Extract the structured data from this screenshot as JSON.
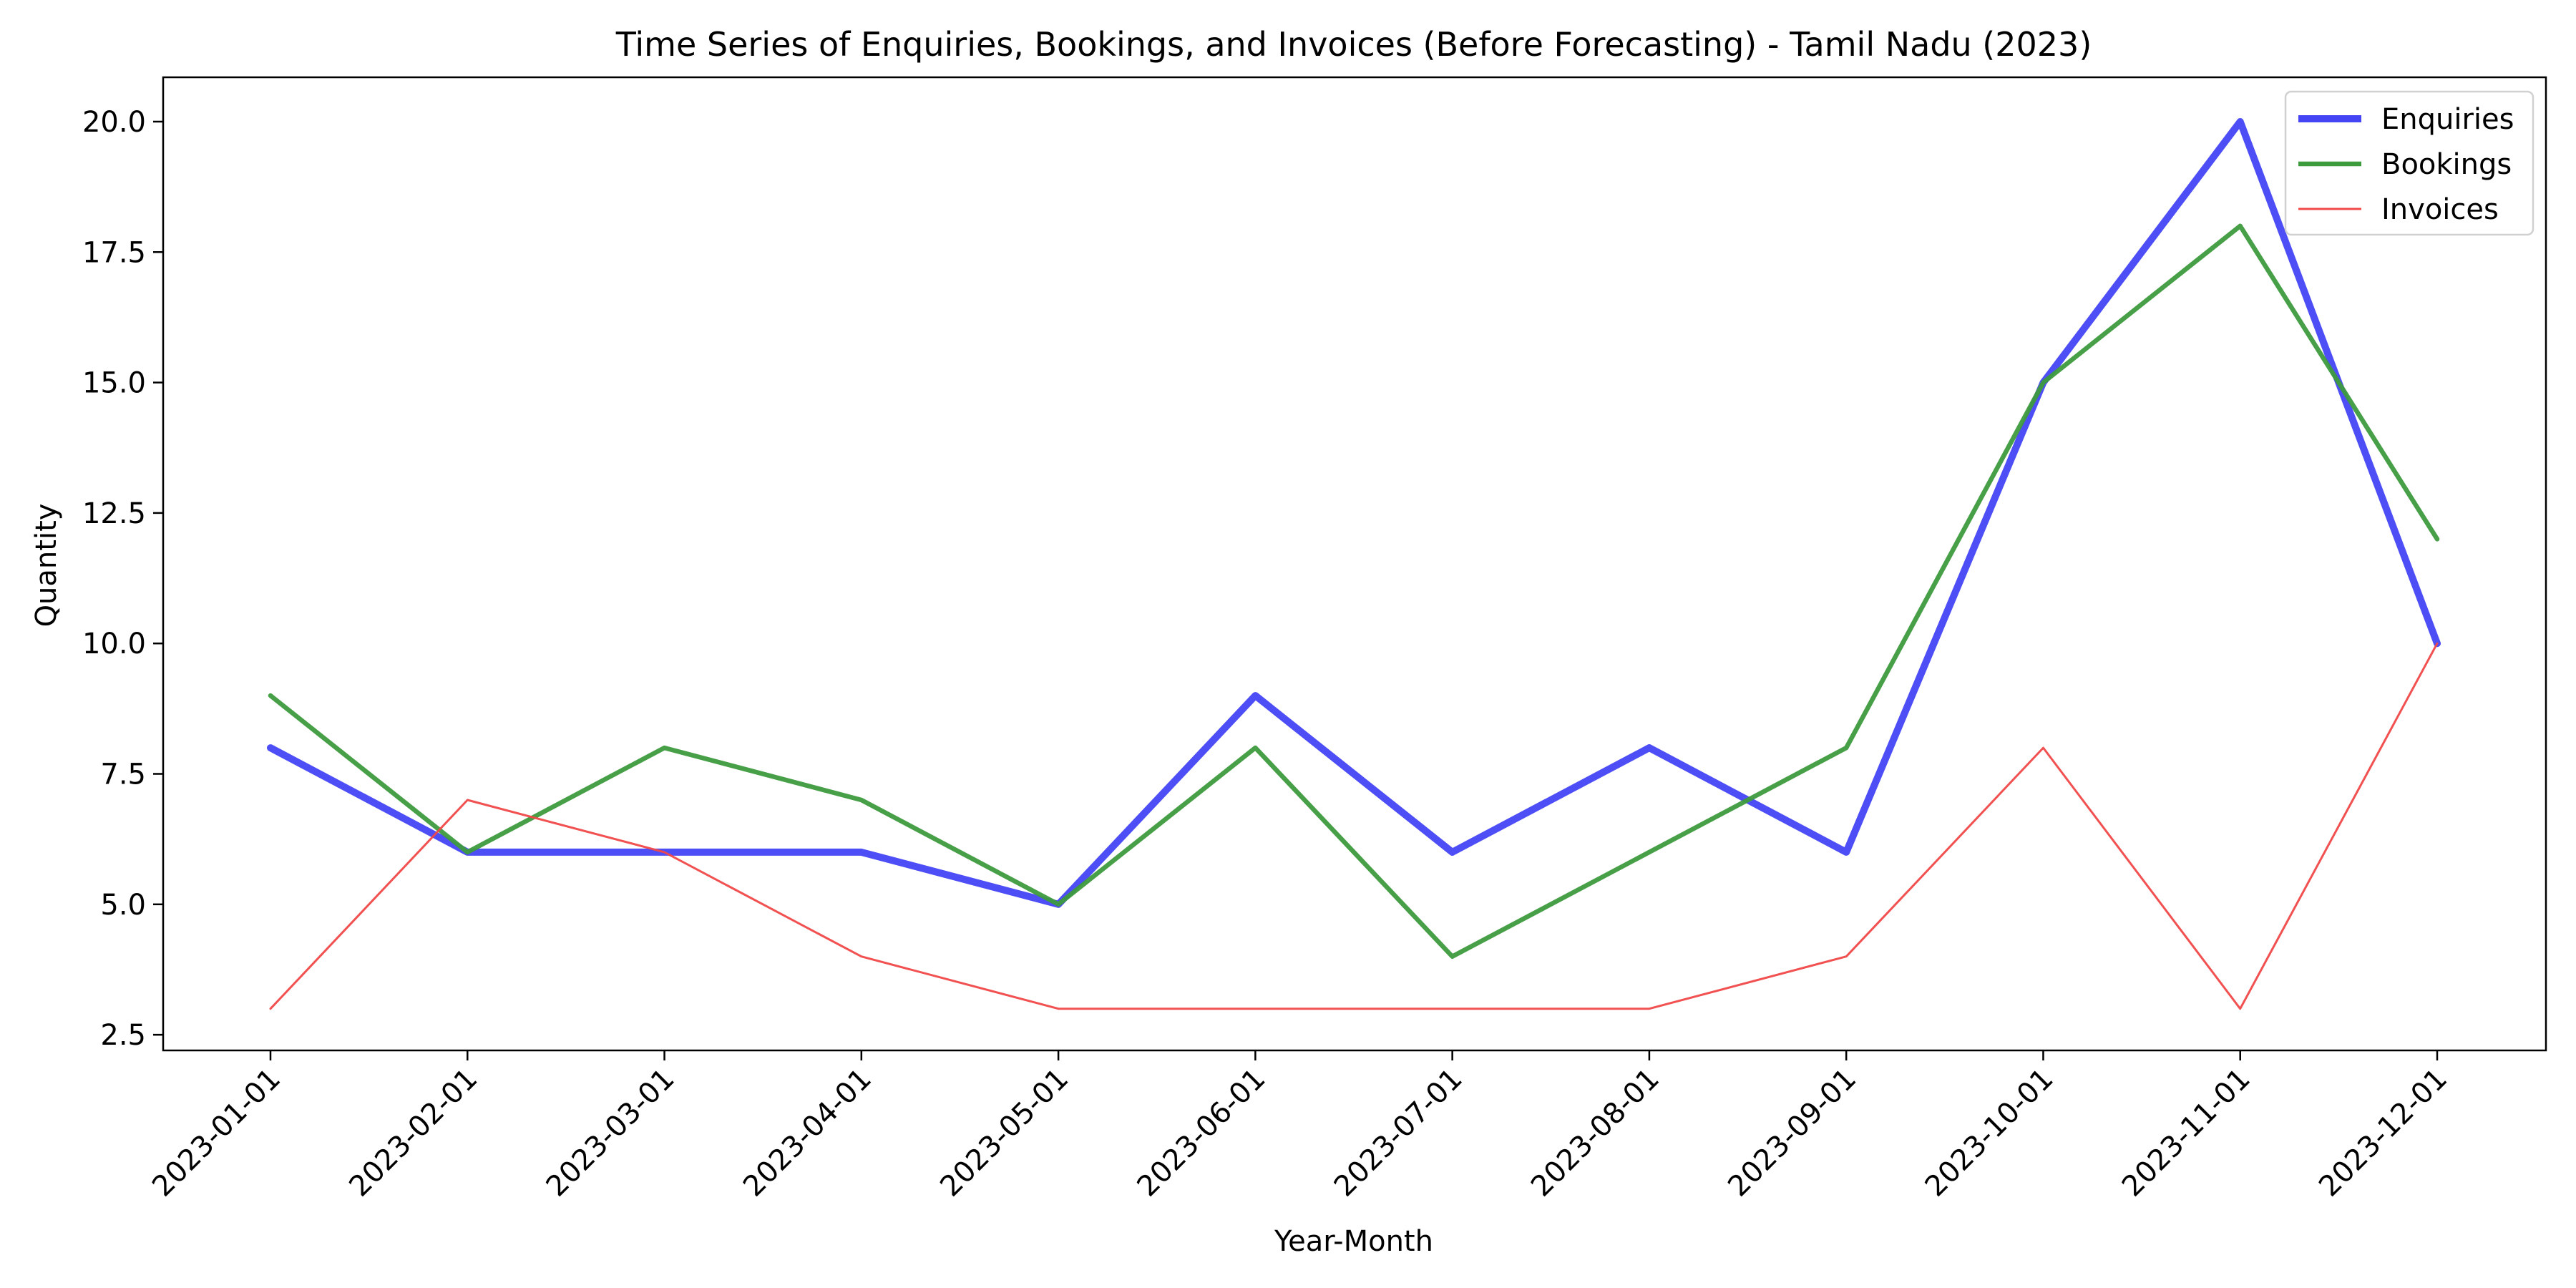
{
  "chart_data": {
    "type": "line",
    "title": "Time Series of Enquiries, Bookings, and Invoices (Before Forecasting) - Tamil Nadu (2023)",
    "xlabel": "Year-Month",
    "ylabel": "Quantity",
    "categories": [
      "2023-01-01",
      "2023-02-01",
      "2023-03-01",
      "2023-04-01",
      "2023-05-01",
      "2023-06-01",
      "2023-07-01",
      "2023-08-01",
      "2023-09-01",
      "2023-10-01",
      "2023-11-01",
      "2023-12-01"
    ],
    "yticks": [
      "2.5",
      "5.0",
      "7.5",
      "10.0",
      "12.5",
      "15.0",
      "17.5",
      "20.0"
    ],
    "ylim": [
      2.2,
      20.85
    ],
    "grid": false,
    "legend_position": "top-right",
    "series": [
      {
        "name": "Enquiries",
        "color": "#4444f5",
        "values": [
          8,
          6,
          6,
          6,
          5,
          9,
          6,
          8,
          6,
          15,
          20,
          10
        ]
      },
      {
        "name": "Bookings",
        "color": "#3d9a3d",
        "values": [
          9,
          6,
          8,
          7,
          5,
          8,
          4,
          6,
          8,
          15,
          18,
          12
        ]
      },
      {
        "name": "Invoices",
        "color": "#f04848",
        "values": [
          3,
          7,
          6,
          4,
          3,
          3,
          3,
          3,
          4,
          8,
          3,
          10
        ]
      }
    ]
  }
}
